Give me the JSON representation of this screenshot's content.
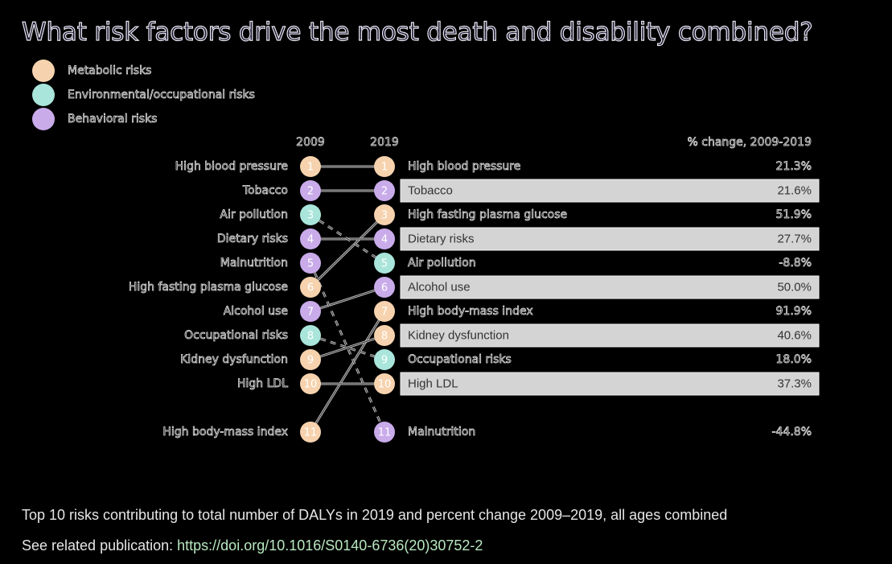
{
  "title": "What risk factors drive the most death and disability combined?",
  "legend": [
    {
      "key": "metabolic",
      "label": "Metabolic risks",
      "color": "#f6d3ae"
    },
    {
      "key": "environmental",
      "label": "Environmental/occupational risks",
      "color": "#a9e5da"
    },
    {
      "key": "behavioral",
      "label": "Behavioral risks",
      "color": "#c9abea"
    }
  ],
  "chart_data": {
    "type": "table",
    "subtype": "slope-rank",
    "title": "What risk factors drive the most death and disability combined?",
    "column_headers": {
      "left": "2009",
      "right": "2019",
      "change": "% change, 2009-2019"
    },
    "ranks_2009": [
      {
        "rank": 1,
        "risk": "High blood pressure",
        "category": "metabolic"
      },
      {
        "rank": 2,
        "risk": "Tobacco",
        "category": "behavioral"
      },
      {
        "rank": 3,
        "risk": "Air pollution",
        "category": "environmental"
      },
      {
        "rank": 4,
        "risk": "Dietary risks",
        "category": "behavioral"
      },
      {
        "rank": 5,
        "risk": "Malnutrition",
        "category": "behavioral"
      },
      {
        "rank": 6,
        "risk": "High fasting plasma glucose",
        "category": "metabolic"
      },
      {
        "rank": 7,
        "risk": "Alcohol use",
        "category": "behavioral"
      },
      {
        "rank": 8,
        "risk": "Occupational risks",
        "category": "environmental"
      },
      {
        "rank": 9,
        "risk": "Kidney dysfunction",
        "category": "metabolic"
      },
      {
        "rank": 10,
        "risk": "High LDL",
        "category": "metabolic"
      },
      {
        "rank": 11,
        "risk": "High body-mass index",
        "category": "metabolic"
      }
    ],
    "ranks_2019": [
      {
        "rank": 1,
        "risk": "High blood pressure",
        "category": "metabolic",
        "pct_change": "21.3%",
        "from_rank": 1,
        "highlight": false
      },
      {
        "rank": 2,
        "risk": "Tobacco",
        "category": "behavioral",
        "pct_change": "21.6%",
        "from_rank": 2,
        "highlight": true
      },
      {
        "rank": 3,
        "risk": "High fasting plasma glucose",
        "category": "metabolic",
        "pct_change": "51.9%",
        "from_rank": 6,
        "highlight": false
      },
      {
        "rank": 4,
        "risk": "Dietary risks",
        "category": "behavioral",
        "pct_change": "27.7%",
        "from_rank": 4,
        "highlight": true
      },
      {
        "rank": 5,
        "risk": "Air pollution",
        "category": "environmental",
        "pct_change": "-8.8%",
        "from_rank": 3,
        "highlight": false
      },
      {
        "rank": 6,
        "risk": "Alcohol use",
        "category": "behavioral",
        "pct_change": "50.0%",
        "from_rank": 7,
        "highlight": true
      },
      {
        "rank": 7,
        "risk": "High body-mass index",
        "category": "metabolic",
        "pct_change": "91.9%",
        "from_rank": 11,
        "highlight": false
      },
      {
        "rank": 8,
        "risk": "Kidney dysfunction",
        "category": "metabolic",
        "pct_change": "40.6%",
        "from_rank": 9,
        "highlight": true
      },
      {
        "rank": 9,
        "risk": "Occupational risks",
        "category": "environmental",
        "pct_change": "18.0%",
        "from_rank": 8,
        "highlight": false
      },
      {
        "rank": 10,
        "risk": "High LDL",
        "category": "metabolic",
        "pct_change": "37.3%",
        "from_rank": 10,
        "highlight": true
      },
      {
        "rank": 11,
        "risk": "Malnutrition",
        "category": "behavioral",
        "pct_change": "-44.8%",
        "from_rank": 5,
        "highlight": false
      }
    ],
    "line_style": {
      "rising": "solid",
      "falling": "dashed"
    }
  },
  "footer": {
    "caption": "Top 10 risks contributing to total number of DALYs in 2019 and percent change 2009–2019, all ages combined",
    "publication_prefix": "See related publication: ",
    "publication_link": "https://doi.org/10.1016/S0140-6736(20)30752-2"
  }
}
